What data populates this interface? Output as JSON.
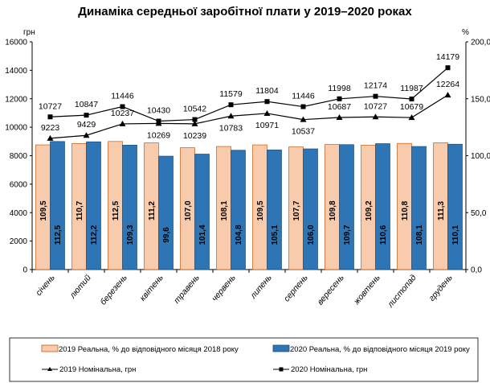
{
  "chart_data": {
    "type": "bar+line",
    "title": "Динаміка середньої заробітної плати у 2019–2020 роках",
    "y_left_unit": "грн",
    "y_right_unit": "%",
    "y_left_lim": [
      0,
      16000
    ],
    "y_left_ticks": [
      "0",
      "2000",
      "4000",
      "6000",
      "8000",
      "10000",
      "12000",
      "14000",
      "16000"
    ],
    "y_right_lim": [
      0,
      200
    ],
    "y_right_ticks": [
      "0,0",
      "50,0",
      "100,0",
      "150,0",
      "200,0"
    ],
    "grid": false,
    "legend_position": "bottom",
    "categories": [
      "січень",
      "лютий",
      "березень",
      "квітень",
      "травень",
      "червень",
      "липень",
      "серпень",
      "вересень",
      "жовтень",
      "листопад",
      "грудень"
    ],
    "series": [
      {
        "name": "2019 Реальна, % до відповідного місяця 2018 року",
        "type": "bar",
        "axis": "right",
        "color": "#f8cbad",
        "values": [
          109.5,
          110.7,
          112.5,
          111.2,
          107.0,
          108.1,
          109.5,
          107.7,
          109.8,
          109.2,
          110.8,
          111.3
        ],
        "labels": [
          "109,5",
          "110,7",
          "112,5",
          "111,2",
          "107,0",
          "108,1",
          "109,5",
          "107,7",
          "109,8",
          "109,2",
          "110,8",
          "111,3"
        ]
      },
      {
        "name": "2020 Реальна, % до відповідного місяця 2019 року",
        "type": "bar",
        "axis": "right",
        "color": "#2e75b6",
        "values": [
          112.5,
          112.2,
          109.3,
          99.6,
          101.4,
          104.8,
          105.1,
          106.0,
          109.7,
          110.6,
          108.1,
          110.1
        ],
        "labels": [
          "112,5",
          "112,2",
          "109,3",
          "99,6",
          "101,4",
          "104,8",
          "105,1",
          "106,0",
          "109,7",
          "110,6",
          "108,1",
          "110,1"
        ]
      },
      {
        "name": "2019 Номінальна, грн",
        "type": "line",
        "axis": "left",
        "marker": "triangle",
        "values": [
          9223,
          9429,
          10237,
          10269,
          10239,
          10783,
          10971,
          10537,
          10687,
          10727,
          10679,
          12264
        ]
      },
      {
        "name": "2020 Номінальна, грн",
        "type": "line",
        "axis": "left",
        "marker": "square",
        "values": [
          10727,
          10847,
          11446,
          10430,
          10542,
          11579,
          11804,
          11446,
          11998,
          12174,
          11987,
          14179
        ]
      }
    ]
  }
}
